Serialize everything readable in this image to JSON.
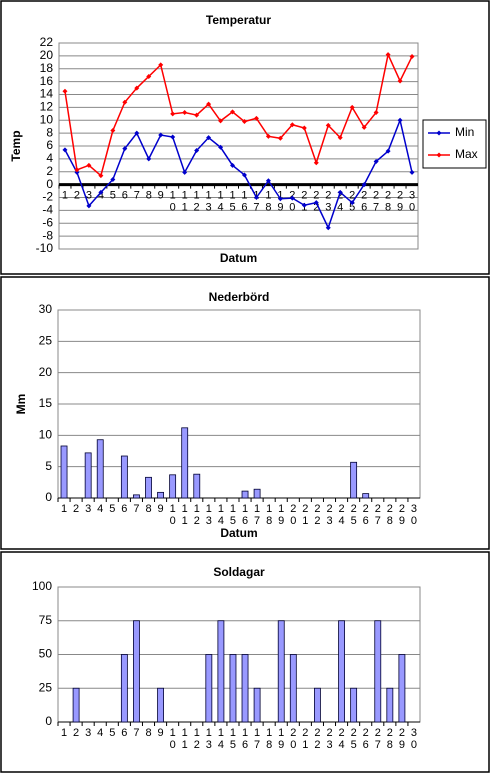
{
  "chart_data": [
    {
      "type": "line",
      "title": "Temperatur",
      "x_label": "Datum",
      "y_label": "Temp",
      "categories": [
        "1",
        "2",
        "3",
        "4",
        "5",
        "6",
        "7",
        "8",
        "9",
        "10",
        "11",
        "12",
        "13",
        "14",
        "15",
        "16",
        "17",
        "18",
        "19",
        "20",
        "21",
        "22",
        "23",
        "24",
        "25",
        "26",
        "27",
        "28",
        "29",
        "30"
      ],
      "series": [
        {
          "name": "Min",
          "color": "#0000cc",
          "values": [
            5.4,
            1.9,
            -3.3,
            -1.2,
            0.8,
            5.6,
            8,
            4,
            7.7,
            7.4,
            1.9,
            5.3,
            7.3,
            5.8,
            3,
            1.5,
            -2,
            0.6,
            -2.2,
            -2.1,
            -3.2,
            -2.8,
            -6.7,
            -1.2,
            -2.8,
            0,
            3.6,
            5.2,
            10,
            1.9
          ]
        },
        {
          "name": "Max",
          "color": "#ff0000",
          "values": [
            14.5,
            2.3,
            3,
            1.4,
            8.4,
            12.8,
            15,
            16.8,
            18.6,
            11,
            11.2,
            10.8,
            12.5,
            9.9,
            11.3,
            9.8,
            10.3,
            7.5,
            7.2,
            9.3,
            8.8,
            3.4,
            9.2,
            7.3,
            12,
            8.9,
            11.2,
            20.2,
            16.1,
            19.9
          ]
        }
      ],
      "ylim": [
        -10,
        22
      ],
      "yticks": [
        -10,
        -8,
        -6,
        -4,
        -2,
        0,
        2,
        4,
        6,
        8,
        10,
        12,
        14,
        16,
        18,
        20,
        22
      ],
      "grid": true,
      "legend": "right"
    },
    {
      "type": "bar",
      "title": "Nederbörd",
      "x_label": "Datum",
      "y_label": "Mm",
      "categories": [
        "1",
        "2",
        "3",
        "4",
        "5",
        "6",
        "7",
        "8",
        "9",
        "10",
        "11",
        "12",
        "13",
        "14",
        "15",
        "16",
        "17",
        "18",
        "19",
        "20",
        "21",
        "22",
        "23",
        "24",
        "25",
        "26",
        "27",
        "28",
        "29",
        "30"
      ],
      "values": [
        8.3,
        0,
        7.2,
        9.3,
        0,
        6.7,
        0.5,
        3.3,
        0.9,
        3.7,
        11.2,
        3.8,
        0,
        0,
        0,
        1.1,
        1.4,
        0,
        0,
        0,
        0,
        0,
        0,
        0,
        5.7,
        0.7,
        0,
        0,
        0,
        0
      ],
      "color": "#9999ff",
      "ylim": [
        0,
        30
      ],
      "yticks": [
        0,
        5,
        10,
        15,
        20,
        25,
        30
      ],
      "grid": true
    },
    {
      "type": "bar",
      "title": "Soldagar",
      "categories": [
        "1",
        "2",
        "3",
        "4",
        "5",
        "6",
        "7",
        "8",
        "9",
        "10",
        "11",
        "12",
        "13",
        "14",
        "15",
        "16",
        "17",
        "18",
        "19",
        "20",
        "21",
        "22",
        "23",
        "24",
        "25",
        "26",
        "27",
        "28",
        "29",
        "30"
      ],
      "values": [
        0,
        25,
        0,
        0,
        0,
        50,
        75,
        0,
        25,
        0,
        0,
        0,
        50,
        75,
        50,
        50,
        25,
        0,
        75,
        50,
        0,
        25,
        0,
        75,
        25,
        0,
        75,
        25,
        50,
        0
      ],
      "color": "#9999ff",
      "ylim": [
        0,
        100
      ],
      "yticks": [
        0,
        25,
        50,
        75,
        100
      ],
      "grid": true
    }
  ]
}
